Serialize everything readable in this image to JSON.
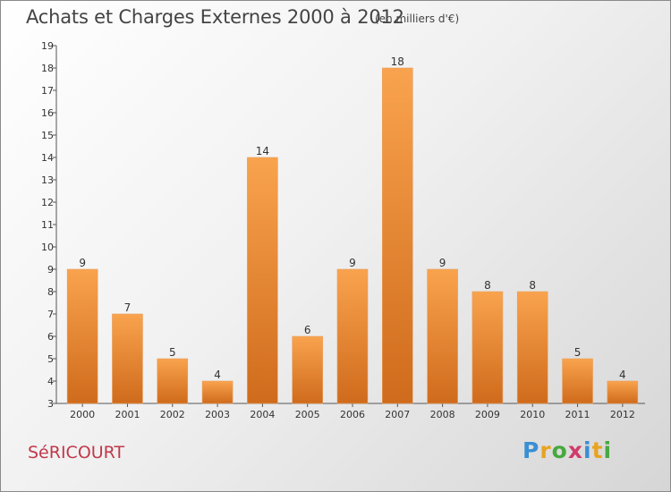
{
  "header": {
    "title": "Achats et Charges Externes 2000 à 2012",
    "subtitle": "(en milliers d'€)"
  },
  "footer": {
    "commune": "SéRICOURT",
    "logo": [
      "P",
      "r",
      "o",
      "x",
      "i",
      "t",
      "i"
    ],
    "logo_colors": [
      "#3a8fd4",
      "#e8a321",
      "#46a83f",
      "#d03b6c",
      "#3a8fd4",
      "#e8a321",
      "#46a83f"
    ]
  },
  "colors": {
    "bar_light": "#f9a34e",
    "bar_dark": "#cf6b1c",
    "axis": "#555555"
  },
  "chart_data": {
    "type": "bar",
    "categories": [
      "2000",
      "2001",
      "2002",
      "2003",
      "2004",
      "2005",
      "2006",
      "2007",
      "2008",
      "2009",
      "2010",
      "2011",
      "2012"
    ],
    "values": [
      9,
      7,
      5,
      4,
      14,
      6,
      9,
      18,
      9,
      8,
      8,
      5,
      4
    ],
    "data_labels": [
      "9",
      "7",
      "5",
      "4",
      "14",
      "6",
      "9",
      "18",
      "9",
      "8",
      "8",
      "5",
      "4"
    ],
    "ylim": [
      3,
      19
    ],
    "yticks": [
      3,
      4,
      5,
      6,
      7,
      8,
      9,
      10,
      11,
      12,
      13,
      14,
      15,
      16,
      17,
      18,
      19
    ],
    "grid": false,
    "legend": "none"
  }
}
